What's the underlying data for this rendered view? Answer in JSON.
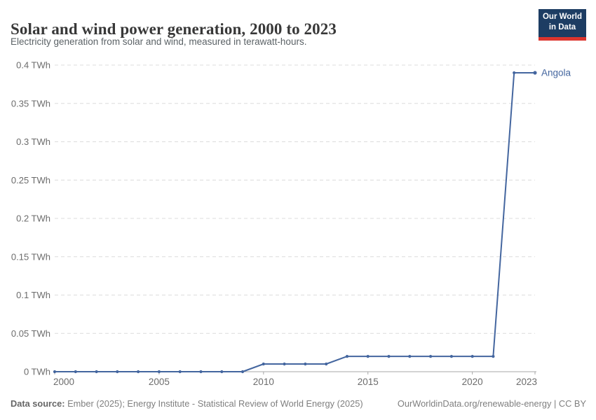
{
  "header": {
    "title": "Solar and wind power generation, 2000 to 2023",
    "subtitle": "Electricity generation from solar and wind, measured in terawatt-hours.",
    "logo": {
      "line1": "Our World",
      "line2": "in Data"
    }
  },
  "chart_data": {
    "type": "line",
    "title": "Solar and wind power generation, 2000 to 2023",
    "ylabel": "",
    "xlabel": "",
    "unit": "TWh",
    "x": [
      2000,
      2001,
      2002,
      2003,
      2004,
      2005,
      2006,
      2007,
      2008,
      2009,
      2010,
      2011,
      2012,
      2013,
      2014,
      2015,
      2016,
      2017,
      2018,
      2019,
      2020,
      2021,
      2022,
      2023
    ],
    "series": [
      {
        "name": "Angola",
        "color": "#44669f",
        "values": [
          0,
          0,
          0,
          0,
          0,
          0,
          0,
          0,
          0,
          0,
          0.01,
          0.01,
          0.01,
          0.01,
          0.02,
          0.02,
          0.02,
          0.02,
          0.02,
          0.02,
          0.02,
          0.02,
          0.39,
          0.39
        ]
      }
    ],
    "ylim": [
      0,
      0.4
    ],
    "yticks": [
      0,
      0.05,
      0.1,
      0.15,
      0.2,
      0.25,
      0.3,
      0.35,
      0.4
    ],
    "ytick_suffix": " TWh",
    "xticks": [
      2000,
      2005,
      2010,
      2015,
      2020,
      2023
    ],
    "grid": "horizontal-dashed",
    "legend": "end-of-line-label"
  },
  "footer": {
    "datasource_label": "Data source:",
    "datasource_text": " Ember (2025); Energy Institute - Statistical Review of World Energy (2025)",
    "link": "OurWorldinData.org/renewable-energy | CC BY"
  },
  "colors": {
    "line": "#44669f",
    "gridline": "#dcdcdc",
    "axis": "#a7a7a7",
    "tick_label": "#6c6c6c",
    "title": "#383838",
    "subtitle": "#5b6266",
    "logo_bg": "#1d3d63",
    "logo_red": "#dc352e"
  }
}
